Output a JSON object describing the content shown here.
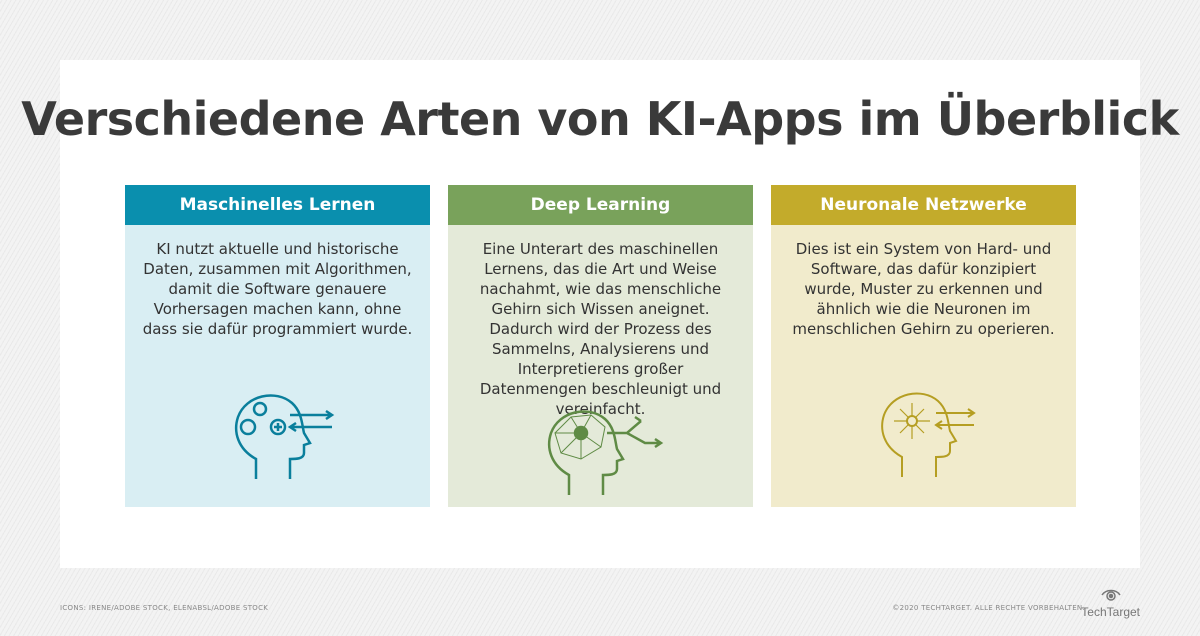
{
  "title": "Verschiedene Arten von KI-Apps im Überblick",
  "cards": [
    {
      "heading": "Maschinelles Lernen",
      "text": "KI nutzt aktuelle und historische Daten, zusammen mit Algorithmen, damit die Software genauere Vorhersagen machen kann, ohne dass sie dafür programmiert wurde.",
      "icon": "head-gears-icon",
      "header_color": "#0a8fae",
      "body_color": "#d9eef3"
    },
    {
      "heading": "Deep Learning",
      "text": "Eine Unterart des maschinellen Lernens, das die Art und Weise nachahmt, wie das menschliche Gehirn sich Wissen aneignet. Dadurch wird der Prozess des Sammelns, Analysierens und Interpretierens großer Datenmengen beschleunigt und vereinfacht.",
      "icon": "head-network-icon",
      "header_color": "#79a25b",
      "body_color": "#e4ead9"
    },
    {
      "heading": "Neuronale Netzwerke",
      "text": "Dies ist ein System von Hard- und Software, das dafür konzipiert wurde, Muster zu erkennen und ähnlich wie die Neuronen im menschlichen Gehirn zu operieren.",
      "icon": "head-neurons-icon",
      "header_color": "#c3ab2b",
      "body_color": "#f1ebcc"
    }
  ],
  "footer": {
    "credits": "ICONS: IRENE/ADOBE STOCK, ELENABSL/ADOBE STOCK",
    "copyright": "©2020 TECHTARGET. ALLE RECHTE VORBEHALTEN.",
    "logo": "TechTarget"
  }
}
